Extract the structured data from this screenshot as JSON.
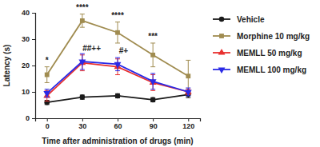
{
  "chart_data": {
    "type": "line",
    "x_label": "Time after administration of drugs (min)",
    "y_label": "Latency (s)",
    "x": [
      0,
      30,
      60,
      90,
      120
    ],
    "xlim": [
      -10,
      130
    ],
    "xticks": [
      0,
      30,
      60,
      90,
      120
    ],
    "ylim": [
      0,
      40
    ],
    "yticks": [
      0,
      10,
      20,
      30,
      40
    ],
    "grid": false,
    "legend": "right",
    "series": [
      {
        "name": "Vehicle",
        "color": "#1a1a1a",
        "marker": "circle",
        "values": [
          6,
          8,
          8.5,
          7,
          9
        ],
        "errors": [
          0.8,
          0.8,
          0.8,
          0.8,
          1.2
        ]
      },
      {
        "name": "Morphine 10 mg/kg",
        "color": "#a08c50",
        "marker": "square",
        "values": [
          16.5,
          37,
          32.5,
          24,
          16
        ],
        "errors": [
          3,
          2.5,
          4,
          4.5,
          6
        ]
      },
      {
        "name": "MEMLL 50 mg/kg",
        "color": "#e8302f",
        "marker": "triangle-up",
        "values": [
          8.5,
          21,
          19.5,
          13.5,
          10
        ],
        "errors": [
          2,
          3,
          3,
          3,
          1
        ]
      },
      {
        "name": "MEMLL 100 mg/kg",
        "color": "#2a2ae6",
        "marker": "triangle-down",
        "values": [
          9.5,
          21.5,
          20.5,
          14,
          10
        ],
        "errors": [
          1.5,
          3,
          2.5,
          3,
          1.5
        ]
      }
    ],
    "annotations": [
      {
        "text": "*",
        "x": 0,
        "y": 21
      },
      {
        "text": "****",
        "x": 30,
        "y": 41
      },
      {
        "text": "****",
        "x": 60,
        "y": 38
      },
      {
        "text": "***",
        "x": 90,
        "y": 30
      },
      {
        "text": "##++",
        "x": 38,
        "y": 25.5
      },
      {
        "text": "#+",
        "x": 65,
        "y": 24.5
      }
    ]
  }
}
